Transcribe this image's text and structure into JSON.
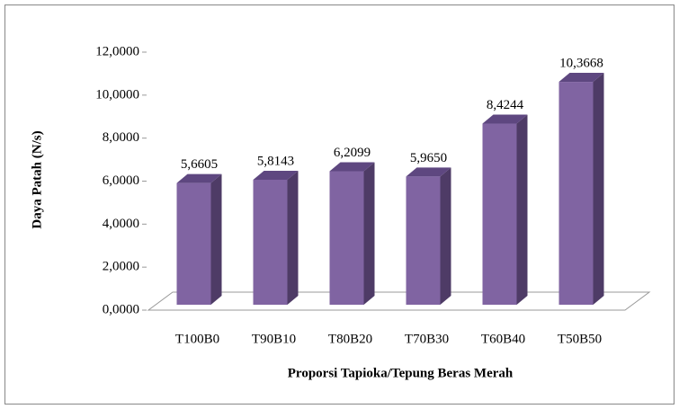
{
  "chart_data": {
    "type": "bar3d",
    "x_label": "Proporsi Tapioka/Tepung Beras Merah",
    "y_label": "Daya Patah (N/s)",
    "categories": [
      "T100B0",
      "T90B10",
      "T80B20",
      "T70B30",
      "T60B40",
      "T50B50"
    ],
    "values": [
      5.6605,
      5.8143,
      6.2099,
      5.965,
      8.4244,
      10.3668
    ],
    "value_labels": [
      "5,6605",
      "5,8143",
      "6,2099",
      "5,9650",
      "8,4244",
      "10,3668"
    ],
    "color": "#8064a2",
    "ylim": [
      0,
      12
    ],
    "yticks": [
      {
        "value": 0,
        "label": "0,0000"
      },
      {
        "value": 2,
        "label": "2,0000"
      },
      {
        "value": 4,
        "label": "4,0000"
      },
      {
        "value": 6,
        "label": "6,0000"
      },
      {
        "value": 8,
        "label": "8,0000"
      },
      {
        "value": 10,
        "label": "10,0000"
      },
      {
        "value": 12,
        "label": "12,0000"
      }
    ]
  }
}
